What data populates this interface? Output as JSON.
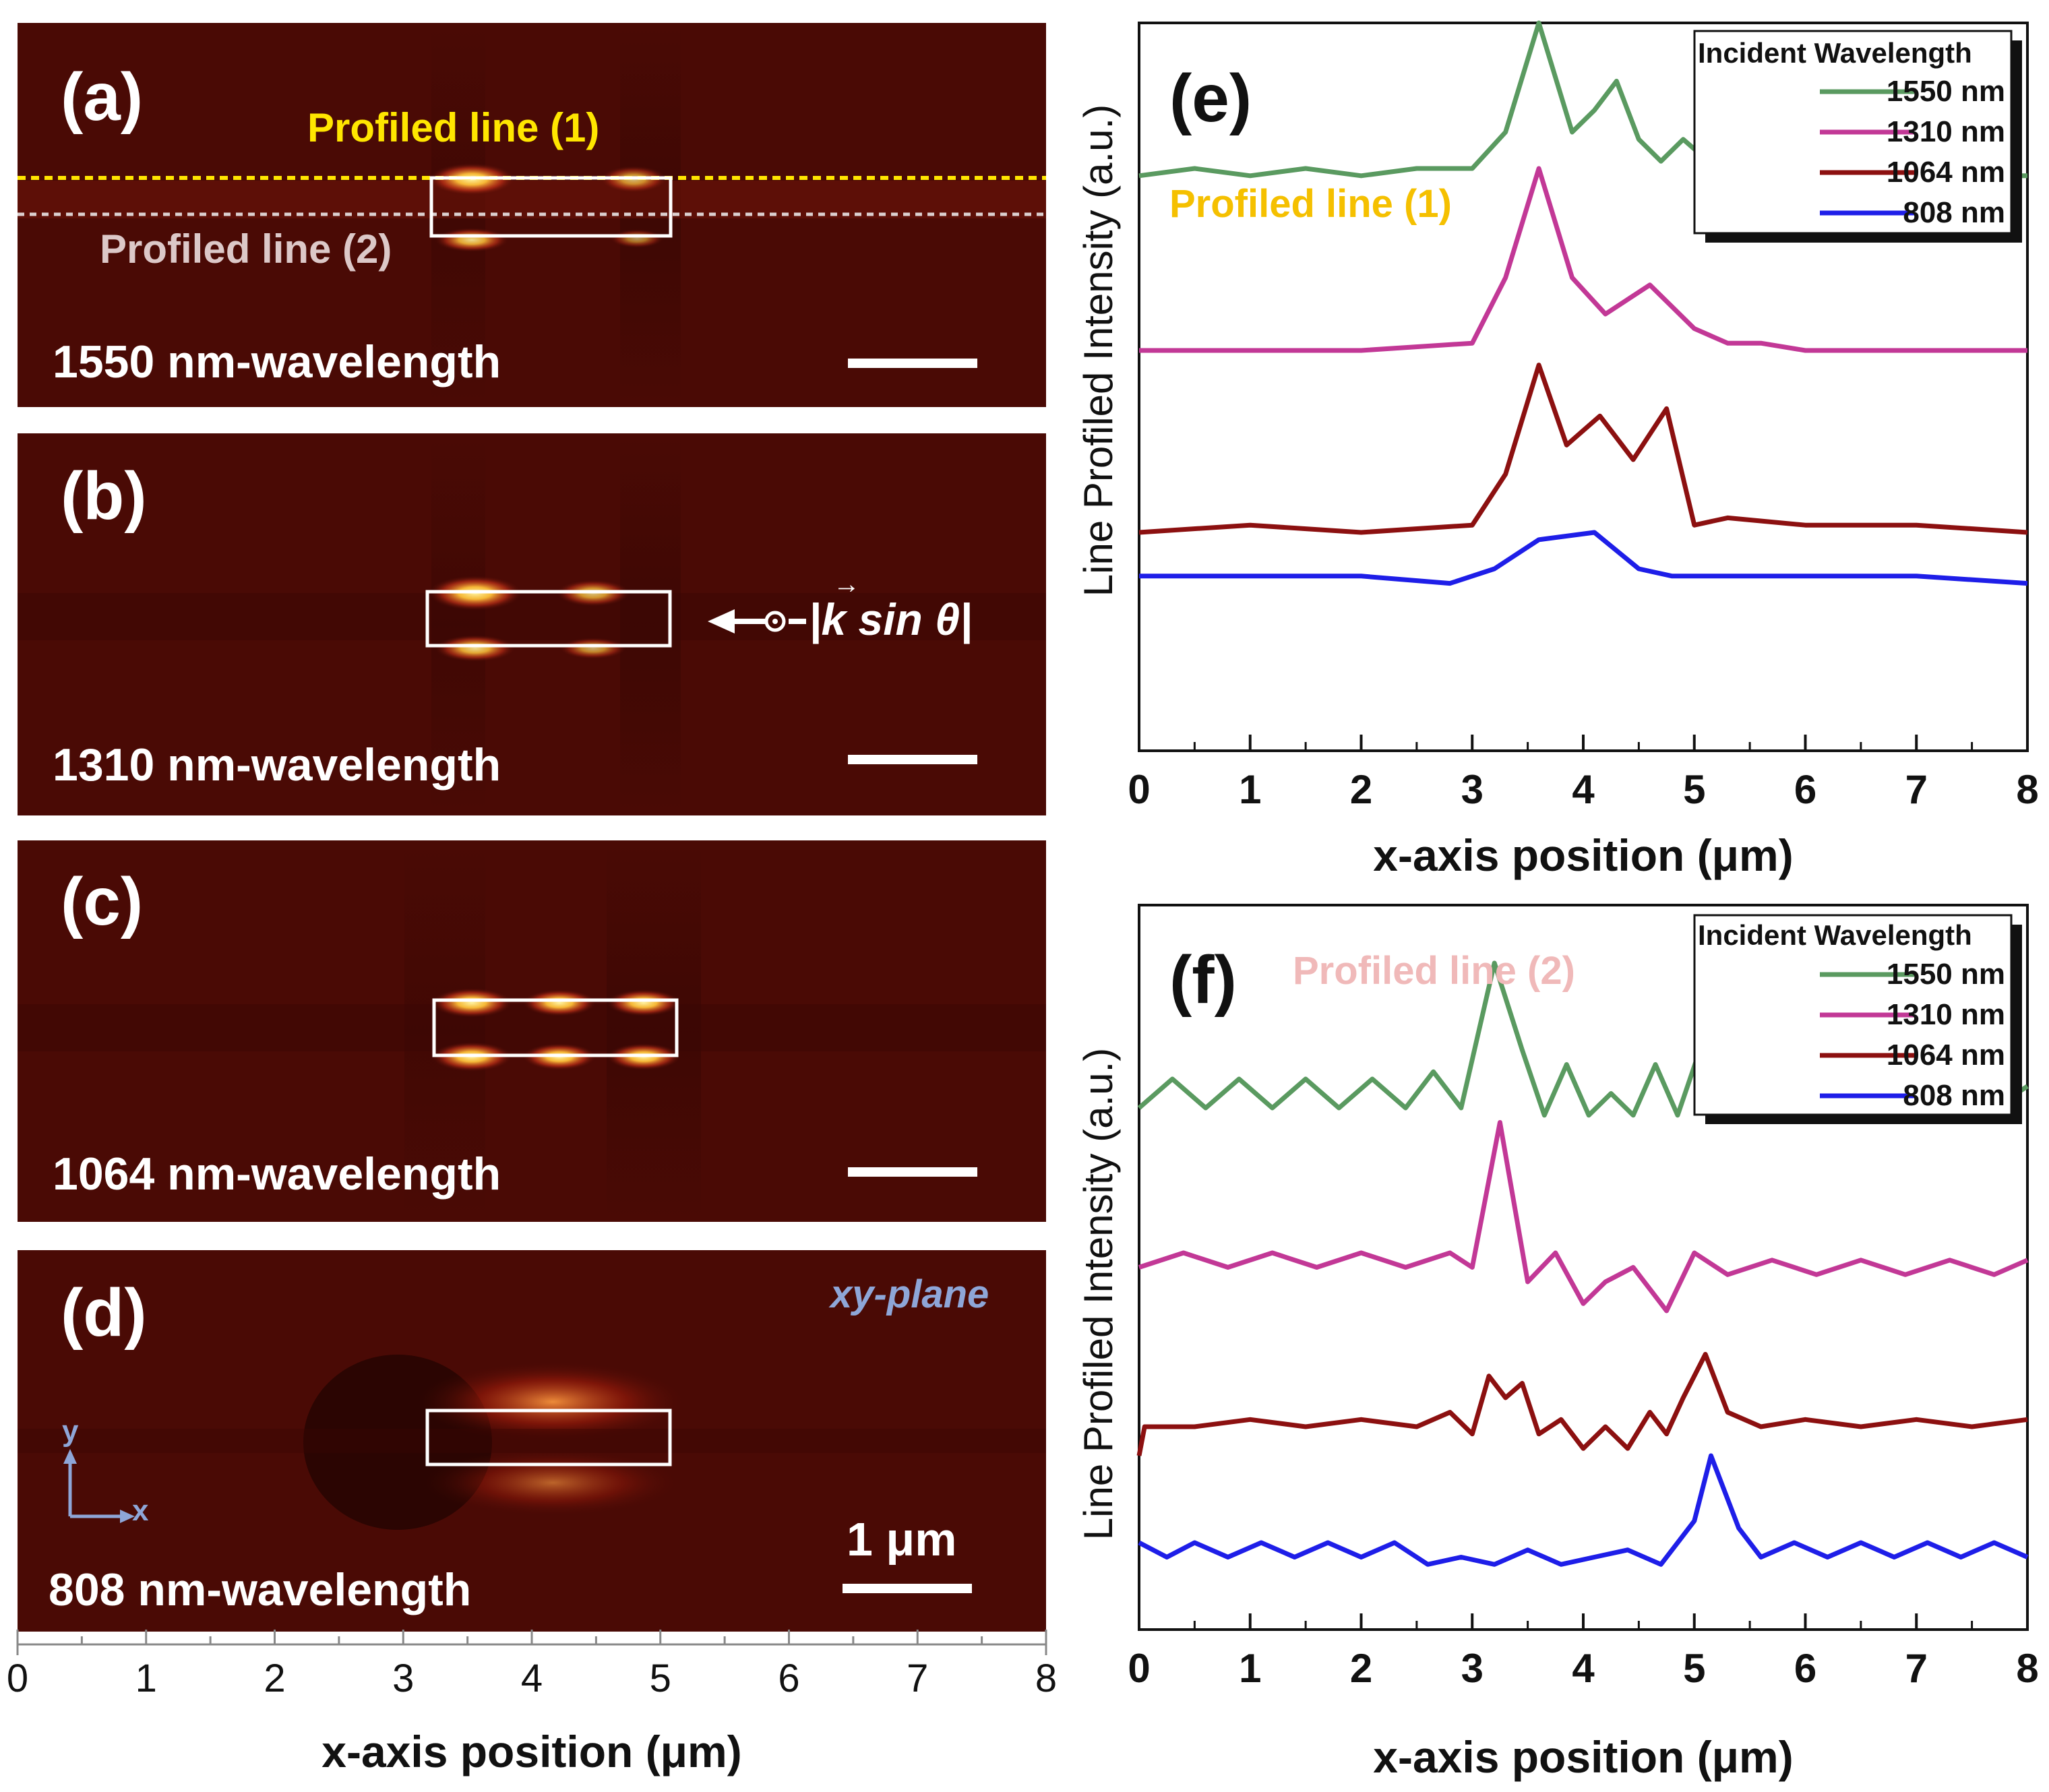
{
  "colors": {
    "map_background": "#4a0a05",
    "hot": "#ffc23a",
    "profile_line_1": "#ffe600",
    "profile_line_2": "#dcd0d0",
    "label_profile_1": "#f5c000",
    "label_profile_2": "#f0b9b9",
    "xy_plane_label": "#8ea6d8",
    "series_1550": "#5a9a60",
    "series_1310": "#c23896",
    "series_1064": "#8c1010",
    "series_808": "#1e1ee8"
  },
  "field_maps": {
    "panels": [
      {
        "label": "(a)",
        "wavelength_label": "1550 nm-wavelength"
      },
      {
        "label": "(b)",
        "wavelength_label": "1310 nm-wavelength"
      },
      {
        "label": "(c)",
        "wavelength_label": "1064 nm-wavelength"
      },
      {
        "label": "(d)",
        "wavelength_label": "808 nm-wavelength"
      }
    ],
    "profiled_line_1_label": "Profiled line (1)",
    "profiled_line_2_label": "Profiled line (2)",
    "k_annotation": "|k sin θ|",
    "k_vector_symbol": "k",
    "plane_label": "xy-plane",
    "axis_y_label": "y",
    "axis_x_label": "x",
    "scale_bar_label": "1 μm",
    "bottom_axis": {
      "ticks": [
        "0",
        "1",
        "2",
        "3",
        "4",
        "5",
        "6",
        "7",
        "8"
      ],
      "title": "x-axis position (μm)",
      "range": [
        0,
        8
      ]
    },
    "box_x_range_um": [
      3.2,
      5.1
    ]
  },
  "chart_data": [
    {
      "type": "line",
      "panel_label": "(e)",
      "annotation": "Profiled line (1)",
      "xlabel": "x-axis position (μm)",
      "ylabel": "Line Profiled Intensity (a.u.)",
      "xlim": [
        0,
        8
      ],
      "ticks": [
        "0",
        "1",
        "2",
        "3",
        "4",
        "5",
        "6",
        "7",
        "8"
      ],
      "legend_title": "Incident Wavelength",
      "legend_position": "top-right",
      "series": [
        {
          "name": "1550 nm",
          "color_key": "series_1550",
          "x": [
            0,
            0.5,
            1,
            1.5,
            2,
            2.5,
            3,
            3.3,
            3.6,
            3.9,
            4.1,
            4.3,
            4.5,
            4.7,
            4.9,
            5.2,
            5.5,
            6,
            6.5,
            7,
            7.5,
            8
          ],
          "y": [
            0.79,
            0.8,
            0.79,
            0.8,
            0.79,
            0.8,
            0.8,
            0.85,
            1.0,
            0.85,
            0.88,
            0.92,
            0.84,
            0.81,
            0.84,
            0.8,
            0.79,
            0.8,
            0.79,
            0.8,
            0.79,
            0.79
          ]
        },
        {
          "name": "1310 nm",
          "color_key": "series_1310",
          "x": [
            0,
            1,
            2,
            3,
            3.3,
            3.6,
            3.9,
            4.2,
            4.6,
            5.0,
            5.3,
            5.6,
            6,
            7,
            8
          ],
          "y": [
            0.55,
            0.55,
            0.55,
            0.56,
            0.65,
            0.8,
            0.65,
            0.6,
            0.64,
            0.58,
            0.56,
            0.56,
            0.55,
            0.55,
            0.55
          ]
        },
        {
          "name": "1064 nm",
          "color_key": "series_1064",
          "x": [
            0,
            1,
            2,
            3,
            3.3,
            3.6,
            3.85,
            4.15,
            4.45,
            4.75,
            5.0,
            5.3,
            6,
            7,
            8
          ],
          "y": [
            0.3,
            0.31,
            0.3,
            0.31,
            0.38,
            0.53,
            0.42,
            0.46,
            0.4,
            0.47,
            0.31,
            0.32,
            0.31,
            0.31,
            0.3
          ]
        },
        {
          "name": "808 nm",
          "color_key": "series_808",
          "x": [
            0,
            1,
            2,
            2.8,
            3.2,
            3.6,
            4.1,
            4.5,
            4.8,
            5.5,
            6,
            7,
            8
          ],
          "y": [
            0.24,
            0.24,
            0.24,
            0.23,
            0.25,
            0.29,
            0.3,
            0.25,
            0.24,
            0.24,
            0.24,
            0.24,
            0.23
          ]
        }
      ]
    },
    {
      "type": "line",
      "panel_label": "(f)",
      "annotation": "Profiled line (2)",
      "xlabel": "x-axis position (μm)",
      "ylabel": "Line Profiled Intensity (a.u.)",
      "xlim": [
        0,
        8
      ],
      "ticks": [
        "0",
        "1",
        "2",
        "3",
        "4",
        "5",
        "6",
        "7",
        "8"
      ],
      "legend_title": "Incident Wavelength",
      "legend_position": "top-right",
      "series": [
        {
          "name": "1550 nm",
          "color_key": "series_1550",
          "x": [
            0,
            0.3,
            0.6,
            0.9,
            1.2,
            1.5,
            1.8,
            2.1,
            2.4,
            2.65,
            2.9,
            3.2,
            3.45,
            3.65,
            3.85,
            4.05,
            4.25,
            4.45,
            4.65,
            4.85,
            5.05,
            5.3,
            5.6,
            5.9,
            6.2,
            6.5,
            6.8,
            7.1,
            7.4,
            7.7,
            8
          ],
          "y": [
            0.72,
            0.76,
            0.72,
            0.76,
            0.72,
            0.76,
            0.72,
            0.76,
            0.72,
            0.77,
            0.72,
            0.92,
            0.8,
            0.71,
            0.78,
            0.71,
            0.74,
            0.71,
            0.78,
            0.71,
            0.8,
            0.72,
            0.75,
            0.72,
            0.75,
            0.72,
            0.75,
            0.72,
            0.75,
            0.72,
            0.75
          ]
        },
        {
          "name": "1310 nm",
          "color_key": "series_1310",
          "x": [
            0,
            0.4,
            0.8,
            1.2,
            1.6,
            2.0,
            2.4,
            2.8,
            3.0,
            3.25,
            3.5,
            3.75,
            4.0,
            4.2,
            4.45,
            4.75,
            5.0,
            5.3,
            5.7,
            6.1,
            6.5,
            6.9,
            7.3,
            7.7,
            8
          ],
          "y": [
            0.5,
            0.52,
            0.5,
            0.52,
            0.5,
            0.52,
            0.5,
            0.52,
            0.5,
            0.7,
            0.48,
            0.52,
            0.45,
            0.48,
            0.5,
            0.44,
            0.52,
            0.49,
            0.51,
            0.49,
            0.51,
            0.49,
            0.51,
            0.49,
            0.51
          ]
        },
        {
          "name": "1064 nm",
          "color_key": "series_1064",
          "x": [
            0,
            0.05,
            0.5,
            1,
            1.5,
            2,
            2.5,
            2.8,
            3.0,
            3.15,
            3.3,
            3.45,
            3.6,
            3.8,
            4.0,
            4.2,
            4.4,
            4.6,
            4.75,
            4.9,
            5.1,
            5.3,
            5.6,
            6,
            6.5,
            7,
            7.5,
            8
          ],
          "y": [
            0.24,
            0.28,
            0.28,
            0.29,
            0.28,
            0.29,
            0.28,
            0.3,
            0.27,
            0.35,
            0.32,
            0.34,
            0.27,
            0.29,
            0.25,
            0.28,
            0.25,
            0.3,
            0.27,
            0.32,
            0.38,
            0.3,
            0.28,
            0.29,
            0.28,
            0.29,
            0.28,
            0.29
          ]
        },
        {
          "name": "808 nm",
          "color_key": "series_808",
          "x": [
            0,
            0.25,
            0.5,
            0.8,
            1.1,
            1.4,
            1.7,
            2.0,
            2.3,
            2.6,
            2.9,
            3.2,
            3.5,
            3.8,
            4.1,
            4.4,
            4.7,
            5.0,
            5.15,
            5.4,
            5.6,
            5.9,
            6.2,
            6.5,
            6.8,
            7.1,
            7.4,
            7.7,
            8
          ],
          "y": [
            0.12,
            0.1,
            0.12,
            0.1,
            0.12,
            0.1,
            0.12,
            0.1,
            0.12,
            0.09,
            0.1,
            0.09,
            0.11,
            0.09,
            0.1,
            0.11,
            0.09,
            0.15,
            0.24,
            0.14,
            0.1,
            0.12,
            0.1,
            0.12,
            0.1,
            0.12,
            0.1,
            0.12,
            0.1
          ]
        }
      ]
    }
  ]
}
